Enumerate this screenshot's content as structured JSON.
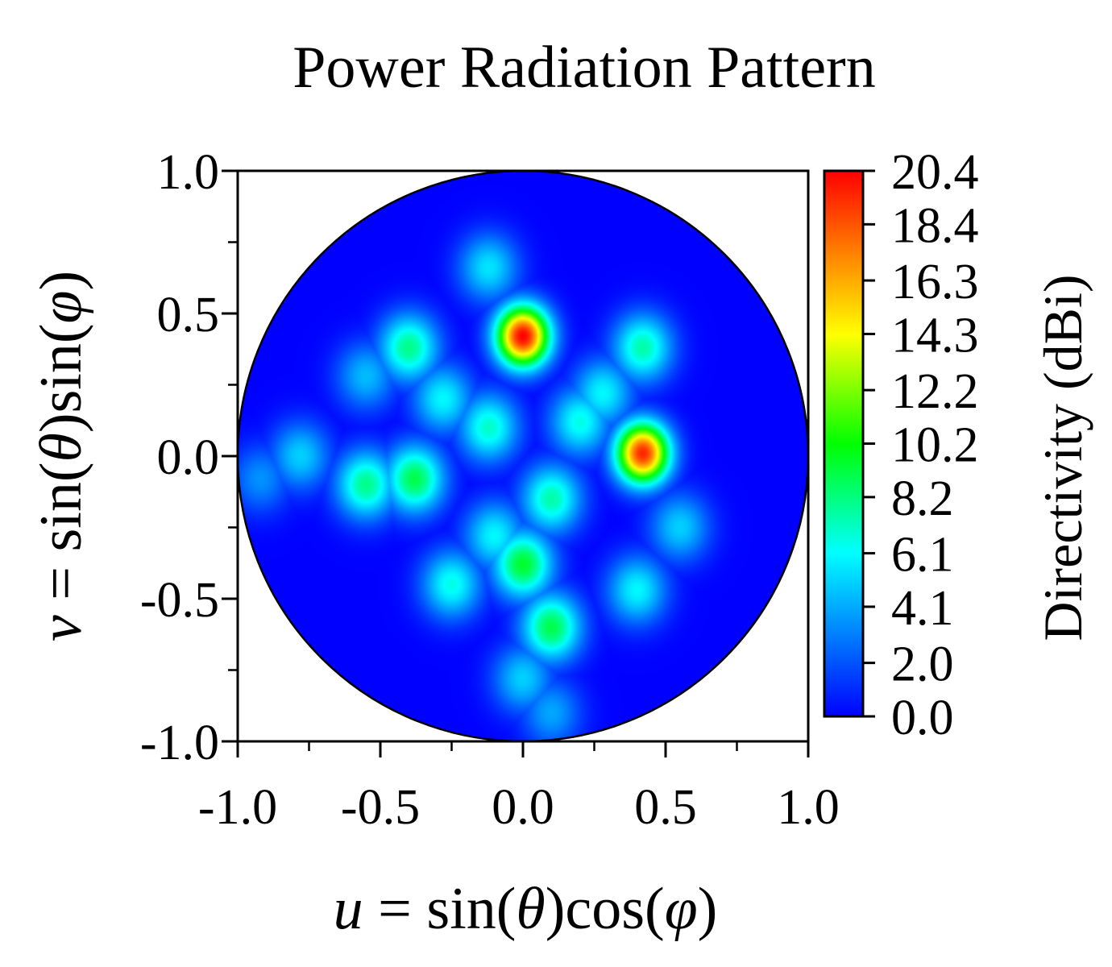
{
  "chart_data": {
    "type": "heatmap",
    "title": "Power Radiation Pattern",
    "xlabel": {
      "var": "u",
      "eq": " = sin(",
      "theta": "θ",
      "mid": ")cos(",
      "phi": "φ",
      "end": ")"
    },
    "ylabel": {
      "var": "v",
      "eq": " = sin(",
      "theta": "θ",
      "mid": ")sin(",
      "phi": "φ",
      "end": ")"
    },
    "xlim": [
      -1.0,
      1.0
    ],
    "ylim": [
      -1.0,
      1.0
    ],
    "x_ticks": [
      "-1.0",
      "-0.5",
      "0.0",
      "0.5",
      "1.0"
    ],
    "y_ticks": [
      "1.0",
      "0.5",
      "0.0",
      "-0.5",
      "-1.0"
    ],
    "region": "unit circle u² + v² ≤ 1",
    "colorbar": {
      "label": "Directivity (dBi)",
      "range": [
        0.0,
        20.4
      ],
      "ticks": [
        "20.4",
        "18.4",
        "16.3",
        "14.3",
        "12.2",
        "10.2",
        "8.2",
        "6.1",
        "4.1",
        "2.0",
        "0.0"
      ],
      "colormap": [
        "#0000ff",
        "#0055ff",
        "#00ffff",
        "#00ff00",
        "#ffff00",
        "#ff8000",
        "#ff0000"
      ]
    },
    "background_dbi": 0.0,
    "peaks": [
      {
        "u": 0.0,
        "v": 0.42,
        "dbi": 20.4
      },
      {
        "u": 0.42,
        "v": 0.01,
        "dbi": 19.5
      },
      {
        "u": 0.0,
        "v": -0.38,
        "dbi": 9.5
      },
      {
        "u": 0.1,
        "v": -0.6,
        "dbi": 9.0
      },
      {
        "u": -0.38,
        "v": -0.08,
        "dbi": 9.0
      },
      {
        "u": -0.55,
        "v": -0.1,
        "dbi": 8.0
      },
      {
        "u": -0.4,
        "v": 0.38,
        "dbi": 8.0
      },
      {
        "u": 0.42,
        "v": 0.38,
        "dbi": 7.5
      },
      {
        "u": 0.1,
        "v": -0.15,
        "dbi": 7.5
      },
      {
        "u": -0.78,
        "v": 0.0,
        "dbi": 5.0
      },
      {
        "u": 0.0,
        "v": -0.78,
        "dbi": 5.0
      },
      {
        "u": 0.4,
        "v": -0.47,
        "dbi": 6.0
      },
      {
        "u": -0.25,
        "v": -0.45,
        "dbi": 6.5
      },
      {
        "u": 0.2,
        "v": 0.12,
        "dbi": 6.5
      },
      {
        "u": -0.12,
        "v": 0.1,
        "dbi": 7.0
      },
      {
        "u": -0.28,
        "v": 0.2,
        "dbi": 6.0
      },
      {
        "u": 0.28,
        "v": 0.22,
        "dbi": 6.0
      },
      {
        "u": 0.55,
        "v": -0.25,
        "dbi": 5.0
      },
      {
        "u": -0.12,
        "v": 0.66,
        "dbi": 5.5
      },
      {
        "u": -0.55,
        "v": 0.28,
        "dbi": 4.5
      },
      {
        "u": 0.1,
        "v": -0.9,
        "dbi": 4.0
      },
      {
        "u": -0.92,
        "v": -0.08,
        "dbi": 3.5
      },
      {
        "u": -0.1,
        "v": -0.28,
        "dbi": 6.0
      }
    ]
  }
}
